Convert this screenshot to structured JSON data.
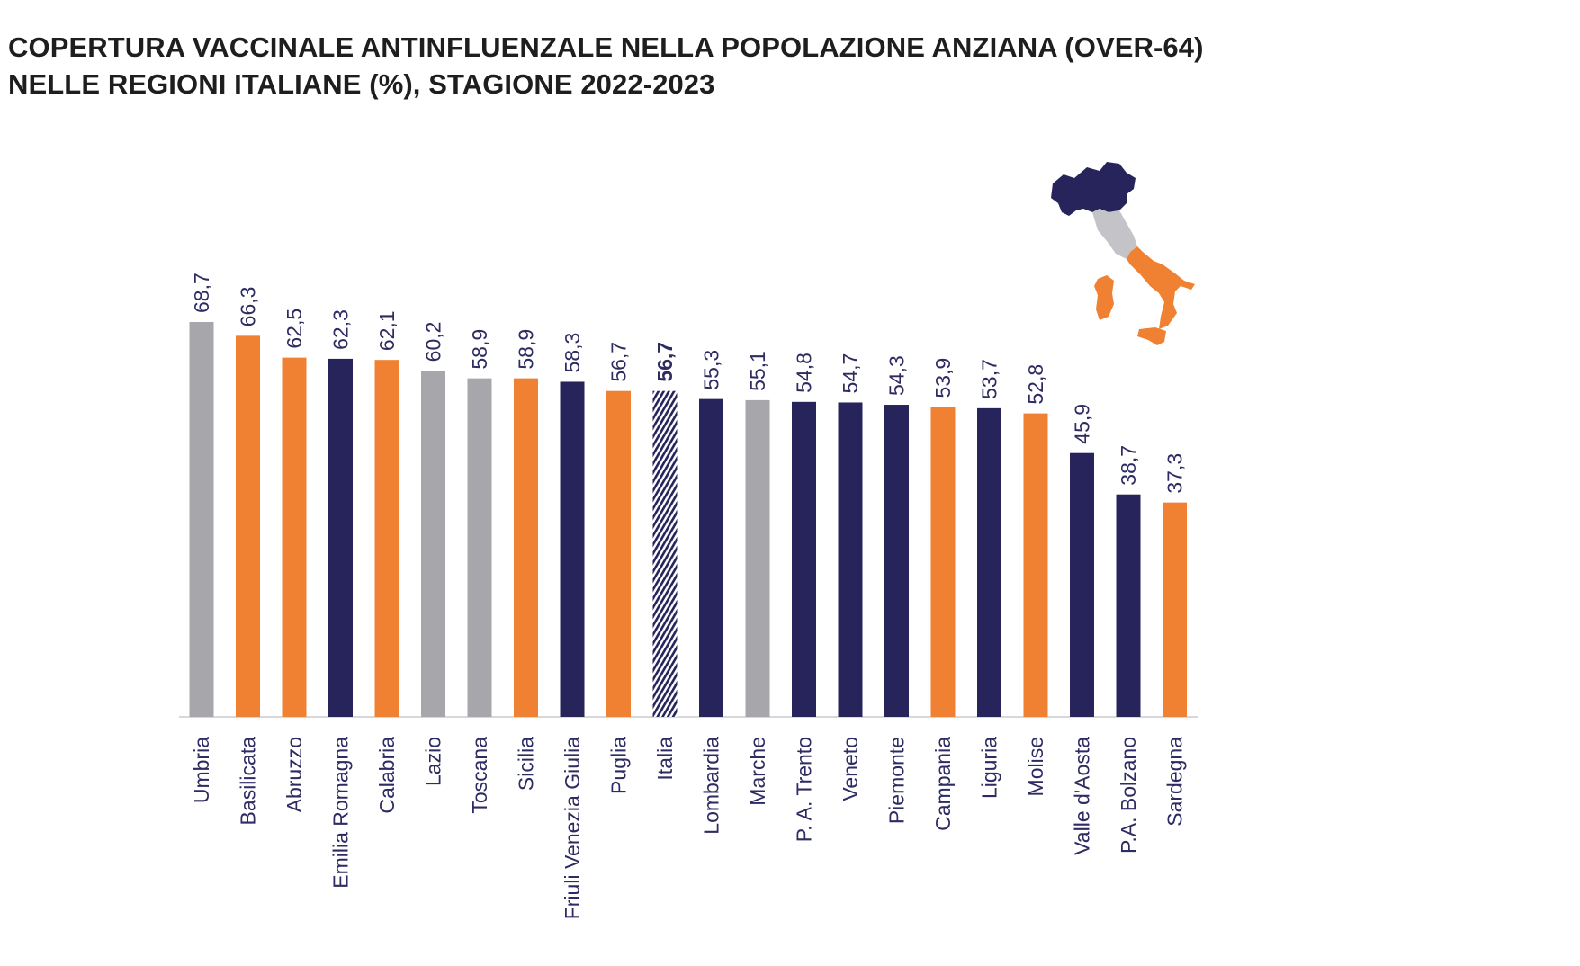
{
  "title": {
    "line1": "COPERTURA VACCINALE ANTINFLUENZALE NELLA POPOLAZIONE ANZIANA (OVER-64)",
    "line2": "NELLE REGIONI ITALIANE (%), STAGIONE 2022-2023"
  },
  "colors": {
    "north": "#27245c",
    "center": "#a7a6ab",
    "south": "#f08132",
    "text": "#2d2b62",
    "axis": "#d8d8dc"
  },
  "chart_data": {
    "type": "bar",
    "title": "COPERTURA VACCINALE ANTINFLUENZALE NELLA POPOLAZIONE ANZIANA (OVER-64) NELLE REGIONI ITALIANE (%), STAGIONE 2022-2023",
    "xlabel": "",
    "ylabel": "",
    "ylim": [
      0,
      70
    ],
    "grid": false,
    "categories": [
      "Umbria",
      "Basilicata",
      "Abruzzo",
      "Emilia Romagna",
      "Calabria",
      "Lazio",
      "Toscana",
      "Sicilia",
      "Friuli Venezia Giulia",
      "Puglia",
      "Italia",
      "Lombardia",
      "Marche",
      "P. A. Trento",
      "Veneto",
      "Piemonte",
      "Campania",
      "Liguria",
      "Molise",
      "Valle d'Aosta",
      "P.A. Bolzano",
      "Sardegna"
    ],
    "values": [
      68.7,
      66.3,
      62.5,
      62.3,
      62.1,
      60.2,
      58.9,
      58.9,
      58.3,
      56.7,
      56.7,
      55.3,
      55.1,
      54.8,
      54.7,
      54.3,
      53.9,
      53.7,
      52.8,
      45.9,
      38.7,
      37.3
    ],
    "value_labels": [
      "68,7",
      "66,3",
      "62,5",
      "62,3",
      "62,1",
      "60,2",
      "58,9",
      "58,9",
      "58,3",
      "56,7",
      "56,7",
      "55,3",
      "55,1",
      "54,8",
      "54,7",
      "54,3",
      "53,9",
      "53,7",
      "52,8",
      "45,9",
      "38,7",
      "37,3"
    ],
    "groups": [
      "center",
      "south",
      "south",
      "north",
      "south",
      "center",
      "center",
      "south",
      "north",
      "south",
      "national",
      "north",
      "center",
      "north",
      "north",
      "north",
      "south",
      "north",
      "south",
      "north",
      "north",
      "south"
    ]
  }
}
